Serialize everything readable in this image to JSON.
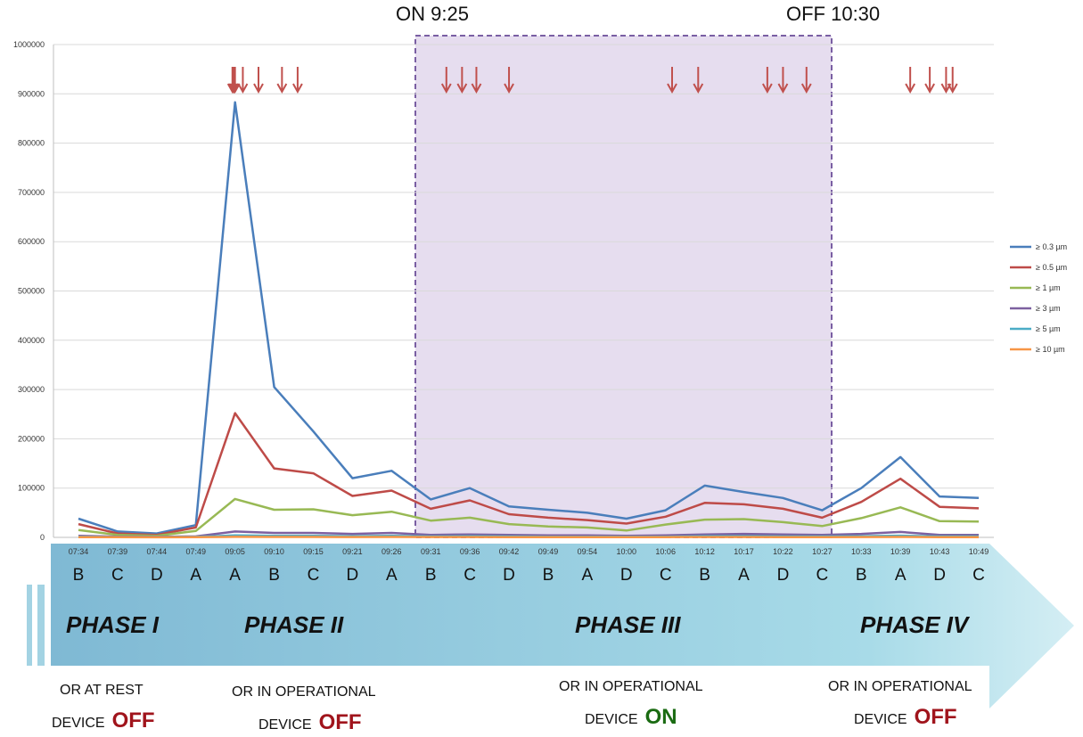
{
  "annotations": {
    "on_label": "ON 9:25",
    "off_label": "OFF 10:30",
    "device_word": "DEVICE",
    "off_color": "#a0141c",
    "on_color": "#1a6b12",
    "box_fill": "#e6ddef",
    "box_stroke": "#7a5fa3",
    "arrow_color": "#c0504d"
  },
  "phases": [
    {
      "name": "PHASE I",
      "subtitle": "OR AT REST",
      "state": "OFF"
    },
    {
      "name": "PHASE II",
      "subtitle": "OR IN OPERATIONAL",
      "state": "OFF"
    },
    {
      "name": "PHASE III",
      "subtitle": "OR IN OPERATIONAL",
      "state": "ON"
    },
    {
      "name": "PHASE IV",
      "subtitle": "OR IN OPERATIONAL",
      "state": "OFF"
    }
  ],
  "chart_data": {
    "type": "line",
    "title": "",
    "xlabel": "",
    "ylabel": "",
    "ylim": [
      0,
      1000000
    ],
    "yticks": [
      0,
      100000,
      200000,
      300000,
      400000,
      500000,
      600000,
      700000,
      800000,
      900000,
      1000000
    ],
    "grid": true,
    "legend_position": "right",
    "categories": [
      "07:34",
      "07:39",
      "07:44",
      "07:49",
      "09:05",
      "09:10",
      "09:15",
      "09:21",
      "09:26",
      "09:31",
      "09:36",
      "09:42",
      "09:49",
      "09:54",
      "10:00",
      "10:06",
      "10:12",
      "10:17",
      "10:22",
      "10:27",
      "10:33",
      "10:39",
      "10:43",
      "10:49"
    ],
    "rooms": [
      "B",
      "C",
      "D",
      "A",
      "A",
      "B",
      "C",
      "D",
      "A",
      "B",
      "C",
      "D",
      "B",
      "A",
      "D",
      "C",
      "B",
      "A",
      "D",
      "C",
      "B",
      "A",
      "D",
      "C"
    ],
    "series": [
      {
        "name": "≥ 0.3 µm",
        "color": "#4a7ebb",
        "values": [
          38000,
          12000,
          8000,
          25000,
          883000,
          305000,
          215000,
          120000,
          135000,
          77000,
          100000,
          63000,
          56000,
          50000,
          38000,
          55000,
          105000,
          92000,
          80000,
          55000,
          100000,
          163000,
          83000,
          80000
        ]
      },
      {
        "name": "≥ 0.5 µm",
        "color": "#be4b48",
        "values": [
          27000,
          8000,
          5000,
          20000,
          252000,
          140000,
          130000,
          84000,
          95000,
          58000,
          75000,
          47000,
          40000,
          35000,
          28000,
          42000,
          70000,
          67000,
          58000,
          40000,
          72000,
          119000,
          62000,
          59000
        ]
      },
      {
        "name": "≥ 1 µm",
        "color": "#98b954",
        "values": [
          15000,
          5000,
          3000,
          13000,
          78000,
          56000,
          57000,
          45000,
          52000,
          34000,
          40000,
          27000,
          22000,
          20000,
          14000,
          26000,
          36000,
          37000,
          31000,
          23000,
          39000,
          61000,
          33000,
          32000
        ]
      },
      {
        "name": "≥ 3 µm",
        "color": "#7d60a0",
        "values": [
          3000,
          1500,
          1000,
          2000,
          12000,
          9000,
          9000,
          7000,
          9000,
          5000,
          6000,
          5000,
          4000,
          4000,
          3000,
          4000,
          6000,
          7000,
          6000,
          5000,
          7000,
          11000,
          5000,
          5000
        ]
      },
      {
        "name": "≥ 5 µm",
        "color": "#4bacc6",
        "values": [
          1500,
          800,
          500,
          1000,
          4000,
          3000,
          3000,
          2500,
          3000,
          2000,
          2500,
          2000,
          1500,
          1500,
          1200,
          1500,
          2500,
          2500,
          2000,
          2000,
          2500,
          3500,
          2000,
          2000
        ]
      },
      {
        "name": "≥ 10 µm",
        "color": "#f79646",
        "values": [
          500,
          300,
          200,
          400,
          1000,
          900,
          900,
          800,
          900,
          700,
          800,
          600,
          500,
          500,
          400,
          500,
          700,
          700,
          600,
          600,
          700,
          900,
          600,
          600
        ]
      }
    ],
    "device_on_interval": [
      "09:25",
      "10:30"
    ],
    "door_openings": [
      "09:00",
      "09:02",
      "09:03",
      "09:05",
      "09:06",
      "09:08",
      "09:11",
      "09:13",
      "09:33",
      "09:35",
      "09:37",
      "09:42",
      "10:07",
      "10:11",
      "10:20",
      "10:22",
      "10:25",
      "10:40",
      "10:42",
      "10:44",
      "10:45"
    ]
  }
}
